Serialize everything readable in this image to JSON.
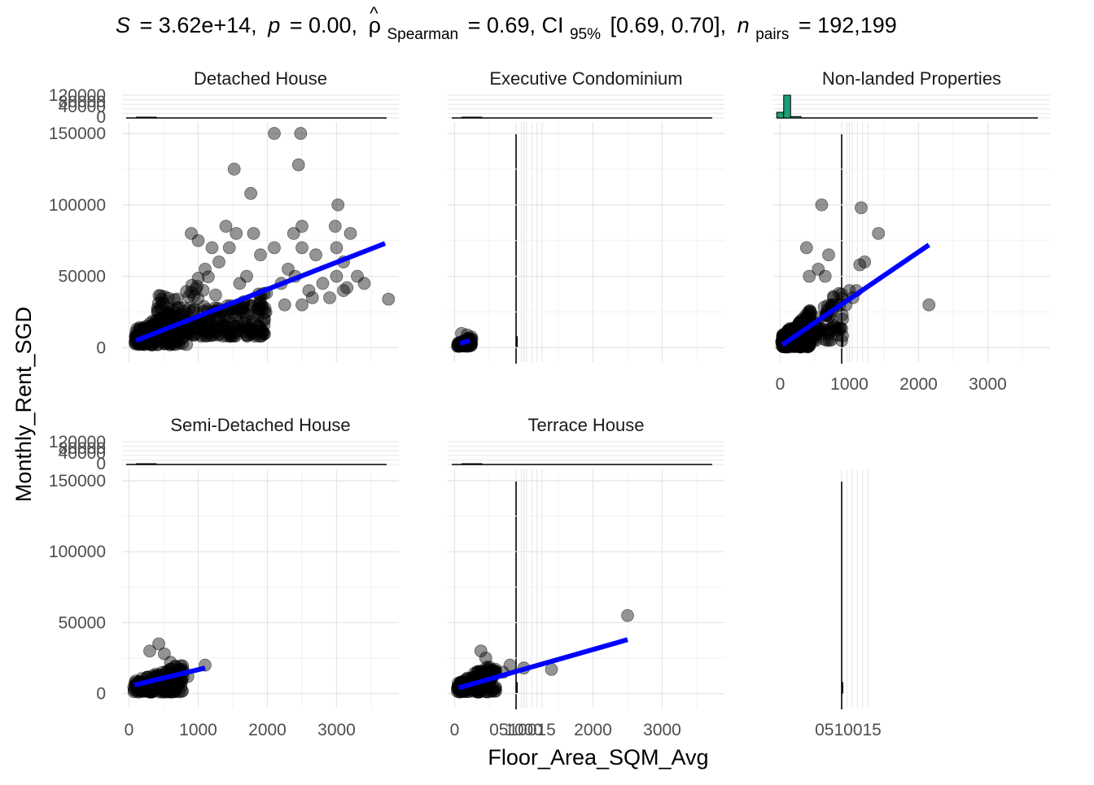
{
  "chart_data": {
    "type": "scatter",
    "title_parts": {
      "s_label": "S",
      "s_value": "= 3.62e+14,",
      "p_label": "p",
      "p_value": "= 0.00,",
      "rho_symbol": "ρ",
      "rho_hat": "^",
      "rho_sub": "Spearman",
      "rho_value": "= 0.69, CI",
      "ci_sub": "95%",
      "ci_value": "[0.69, 0.70],",
      "n_label": "n",
      "n_sub": "pairs",
      "n_value": "= 192,199"
    },
    "xlabel": "Floor_Area_SQM_Avg",
    "ylabel": "Monthly_Rent_SGD",
    "xlim": [
      -100,
      3900
    ],
    "ylim": [
      -10000,
      158000
    ],
    "x_ticks": [
      0,
      1000,
      2000,
      3000
    ],
    "x_tick_labels": [
      "0",
      "1000",
      "2000",
      "3000"
    ],
    "y_ticks": [
      0,
      50000,
      100000,
      150000
    ],
    "y_tick_labels": [
      "0",
      "50000",
      "100000",
      "150000"
    ],
    "marginal_top_tick_labels": [
      "120000",
      "80000",
      "40000",
      "0"
    ],
    "marginal_right_tick_label": "0510015",
    "point_color": "#000000",
    "fit_color": "#0000ff",
    "hist_x_color": "#1b9e77",
    "hist_y_color": "#d95f02",
    "facets": [
      {
        "name": "Detached House",
        "fit": [
          [
            100,
            5000
          ],
          [
            3700,
            73000
          ]
        ],
        "cluster_blobs": [
          {
            "x": [
              80,
              850
            ],
            "y": [
              2000,
              32000
            ],
            "n": 200
          },
          {
            "x": [
              850,
              2000
            ],
            "y": [
              8000,
              40000
            ],
            "n": 160
          },
          {
            "x": [
              400,
              1400
            ],
            "y": [
              25000,
              60000
            ],
            "n": 40
          }
        ],
        "points": [
          [
            2100,
            150000
          ],
          [
            2480,
            150000
          ],
          [
            1520,
            125000
          ],
          [
            2450,
            128000
          ],
          [
            1760,
            108000
          ],
          [
            3020,
            100000
          ],
          [
            2980,
            85000
          ],
          [
            1400,
            85000
          ],
          [
            1550,
            80000
          ],
          [
            1800,
            80000
          ],
          [
            900,
            80000
          ],
          [
            2500,
            85000
          ],
          [
            2380,
            80000
          ],
          [
            3200,
            80000
          ],
          [
            2500,
            70000
          ],
          [
            3000,
            70000
          ],
          [
            2100,
            70000
          ],
          [
            2700,
            65000
          ],
          [
            3100,
            60000
          ],
          [
            1200,
            70000
          ],
          [
            1000,
            75000
          ],
          [
            1900,
            65000
          ],
          [
            3300,
            50000
          ],
          [
            2400,
            50000
          ],
          [
            2200,
            45000
          ],
          [
            2600,
            40000
          ],
          [
            3100,
            40000
          ],
          [
            2900,
            35000
          ],
          [
            2500,
            30000
          ],
          [
            3000,
            50000
          ],
          [
            3750,
            34000
          ],
          [
            1300,
            60000
          ],
          [
            1100,
            55000
          ],
          [
            1700,
            50000
          ],
          [
            2300,
            55000
          ],
          [
            3400,
            45000
          ],
          [
            2800,
            45000
          ],
          [
            1950,
            38000
          ],
          [
            2650,
            35000
          ],
          [
            3150,
            42000
          ],
          [
            1450,
            70000
          ],
          [
            2250,
            30000
          ],
          [
            1600,
            45000
          ]
        ]
      },
      {
        "name": "Executive Condominium",
        "fit": [
          [
            80,
            3000
          ],
          [
            220,
            5000
          ]
        ],
        "cluster_blobs": [
          {
            "x": [
              40,
              250
            ],
            "y": [
              1000,
              8000
            ],
            "n": 60
          }
        ],
        "points": [
          [
            100,
            10000
          ],
          [
            180,
            9000
          ],
          [
            230,
            6000
          ]
        ]
      },
      {
        "name": "Non-landed Properties",
        "fit": [
          [
            30,
            2000
          ],
          [
            2150,
            72000
          ]
        ],
        "cluster_blobs": [
          {
            "x": [
              20,
              450
            ],
            "y": [
              500,
              25000
            ],
            "n": 220
          },
          {
            "x": [
              150,
              900
            ],
            "y": [
              5000,
              45000
            ],
            "n": 90
          }
        ],
        "points": [
          [
            600,
            100000
          ],
          [
            1170,
            98000
          ],
          [
            1420,
            80000
          ],
          [
            1220,
            60000
          ],
          [
            1150,
            58000
          ],
          [
            700,
            65000
          ],
          [
            380,
            70000
          ],
          [
            1000,
            40000
          ],
          [
            1050,
            35000
          ],
          [
            850,
            38000
          ],
          [
            900,
            20000
          ],
          [
            2150,
            30000
          ],
          [
            650,
            50000
          ],
          [
            550,
            55000
          ],
          [
            800,
            30000
          ],
          [
            950,
            30000
          ],
          [
            1100,
            40000
          ],
          [
            420,
            50000
          ]
        ]
      },
      {
        "name": "Semi-Detached House",
        "fit": [
          [
            80,
            6000
          ],
          [
            1100,
            18000
          ]
        ],
        "cluster_blobs": [
          {
            "x": [
              60,
              800
            ],
            "y": [
              1000,
              22000
            ],
            "n": 150
          }
        ],
        "points": [
          [
            1100,
            20000
          ],
          [
            430,
            35000
          ],
          [
            510,
            28000
          ],
          [
            600,
            22000
          ],
          [
            300,
            30000
          ],
          [
            700,
            15000
          ],
          [
            850,
            12000
          ]
        ]
      },
      {
        "name": "Terrace House",
        "fit": [
          [
            60,
            4000
          ],
          [
            2500,
            38000
          ]
        ],
        "cluster_blobs": [
          {
            "x": [
              40,
              600
            ],
            "y": [
              1000,
              22000
            ],
            "n": 150
          }
        ],
        "points": [
          [
            2500,
            55000
          ],
          [
            1400,
            17000
          ],
          [
            380,
            30000
          ],
          [
            800,
            20000
          ],
          [
            700,
            15000
          ],
          [
            1000,
            18000
          ],
          [
            450,
            25000
          ]
        ]
      }
    ],
    "hist_top_nonlanded": [
      {
        "x0": -50,
        "x1": 50,
        "count": 20000
      },
      {
        "x0": 50,
        "x1": 150,
        "count": 80000
      },
      {
        "x0": 150,
        "x1": 300,
        "count": 5000
      }
    ],
    "hist_right_nonlanded": [
      {
        "y0": -3000,
        "y1": 3000,
        "count": 3
      },
      {
        "y0": 3000,
        "y1": 9000,
        "count": 15
      },
      {
        "y0": 9000,
        "y1": 14000,
        "count": 1
      }
    ]
  }
}
